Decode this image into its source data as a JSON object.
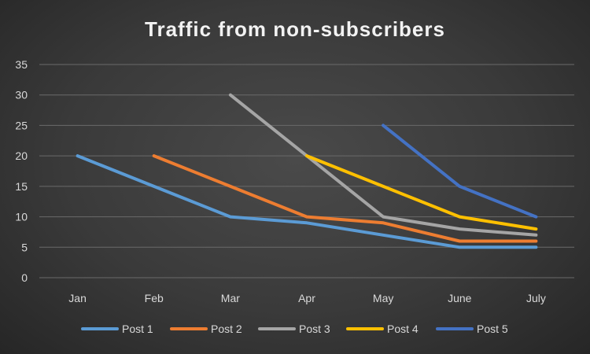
{
  "chart_data": {
    "type": "line",
    "title": "Traffic from non-subscribers",
    "xlabel": "",
    "ylabel": "",
    "categories": [
      "Jan",
      "Feb",
      "Mar",
      "Apr",
      "May",
      "June",
      "July"
    ],
    "ylim": [
      0,
      35
    ],
    "yticks": [
      0,
      5,
      10,
      15,
      20,
      25,
      30,
      35
    ],
    "grid": true,
    "legend_position": "bottom",
    "series": [
      {
        "name": "Post 1",
        "color": "#5b9bd5",
        "values": [
          20,
          15,
          10,
          9,
          7,
          5,
          5
        ]
      },
      {
        "name": "Post 2",
        "color": "#ed7d31",
        "values": [
          null,
          20,
          15,
          10,
          9,
          6,
          6
        ]
      },
      {
        "name": "Post 3",
        "color": "#a5a5a5",
        "values": [
          null,
          null,
          30,
          20,
          10,
          8,
          7
        ]
      },
      {
        "name": "Post 4",
        "color": "#ffc000",
        "values": [
          null,
          null,
          null,
          20,
          15,
          10,
          8
        ]
      },
      {
        "name": "Post 5",
        "color": "#4472c4",
        "values": [
          null,
          null,
          null,
          null,
          25,
          15,
          10
        ]
      }
    ]
  }
}
